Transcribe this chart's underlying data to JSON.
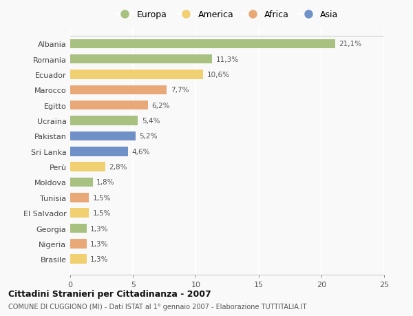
{
  "countries": [
    "Albania",
    "Romania",
    "Ecuador",
    "Marocco",
    "Egitto",
    "Ucraina",
    "Pakistan",
    "Sri Lanka",
    "Perù",
    "Moldova",
    "Tunisia",
    "El Salvador",
    "Georgia",
    "Nigeria",
    "Brasile"
  ],
  "values": [
    21.1,
    11.3,
    10.6,
    7.7,
    6.2,
    5.4,
    5.2,
    4.6,
    2.8,
    1.8,
    1.5,
    1.5,
    1.3,
    1.3,
    1.3
  ],
  "labels": [
    "21,1%",
    "11,3%",
    "10,6%",
    "7,7%",
    "6,2%",
    "5,4%",
    "5,2%",
    "4,6%",
    "2,8%",
    "1,8%",
    "1,5%",
    "1,5%",
    "1,3%",
    "1,3%",
    "1,3%"
  ],
  "continents": [
    "Europa",
    "Europa",
    "America",
    "Africa",
    "Africa",
    "Europa",
    "Asia",
    "Asia",
    "America",
    "Europa",
    "Africa",
    "America",
    "Europa",
    "Africa",
    "America"
  ],
  "colors": {
    "Europa": "#a8c080",
    "America": "#f0d070",
    "Africa": "#e8a878",
    "Asia": "#7090c8"
  },
  "legend_order": [
    "Europa",
    "America",
    "Africa",
    "Asia"
  ],
  "title": "Cittadini Stranieri per Cittadinanza - 2007",
  "subtitle": "COMUNE DI CUGGIONO (MI) - Dati ISTAT al 1° gennaio 2007 - Elaborazione TUTTITALIA.IT",
  "xlim": [
    0,
    25
  ],
  "xticks": [
    0,
    5,
    10,
    15,
    20,
    25
  ],
  "background_color": "#f9f9f9",
  "grid_color": "#ffffff",
  "bar_height": 0.6
}
